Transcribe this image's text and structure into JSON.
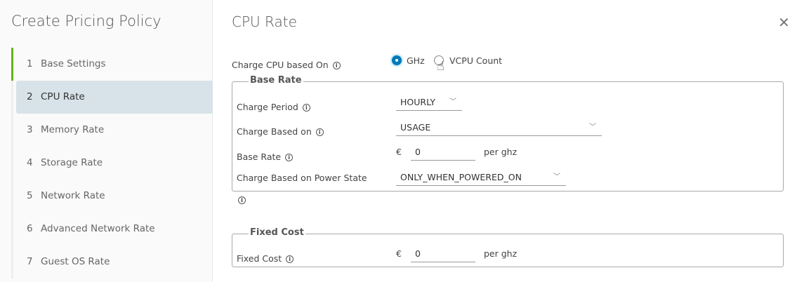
{
  "sidebar": {
    "title": "Create Pricing Policy",
    "steps": [
      {
        "n": "1",
        "label": "Base Settings"
      },
      {
        "n": "2",
        "label": "CPU Rate"
      },
      {
        "n": "3",
        "label": "Memory Rate"
      },
      {
        "n": "4",
        "label": "Storage Rate"
      },
      {
        "n": "5",
        "label": "Network Rate"
      },
      {
        "n": "6",
        "label": "Advanced Network Rate"
      },
      {
        "n": "7",
        "label": "Guest OS Rate"
      }
    ]
  },
  "main": {
    "title": "CPU Rate",
    "close": "✕",
    "charge_cpu": {
      "label": "Charge CPU based On",
      "options": [
        "GHz",
        "VCPU Count"
      ],
      "selected": "GHz"
    },
    "base_rate": {
      "legend": "Base Rate",
      "charge_period": {
        "label": "Charge Period",
        "value": "HOURLY"
      },
      "charge_based_on": {
        "label": "Charge Based on",
        "value": "USAGE"
      },
      "base_rate": {
        "label": "Base Rate",
        "currency": "€",
        "value": "0",
        "unit": "per ghz"
      },
      "power_state": {
        "label": "Charge Based on Power State",
        "value": "ONLY_WHEN_POWERED_ON"
      }
    },
    "fixed_cost": {
      "legend": "Fixed Cost",
      "label": "Fixed Cost",
      "currency": "€",
      "value": "0",
      "unit": "per ghz"
    },
    "accent": "#0079b8"
  }
}
